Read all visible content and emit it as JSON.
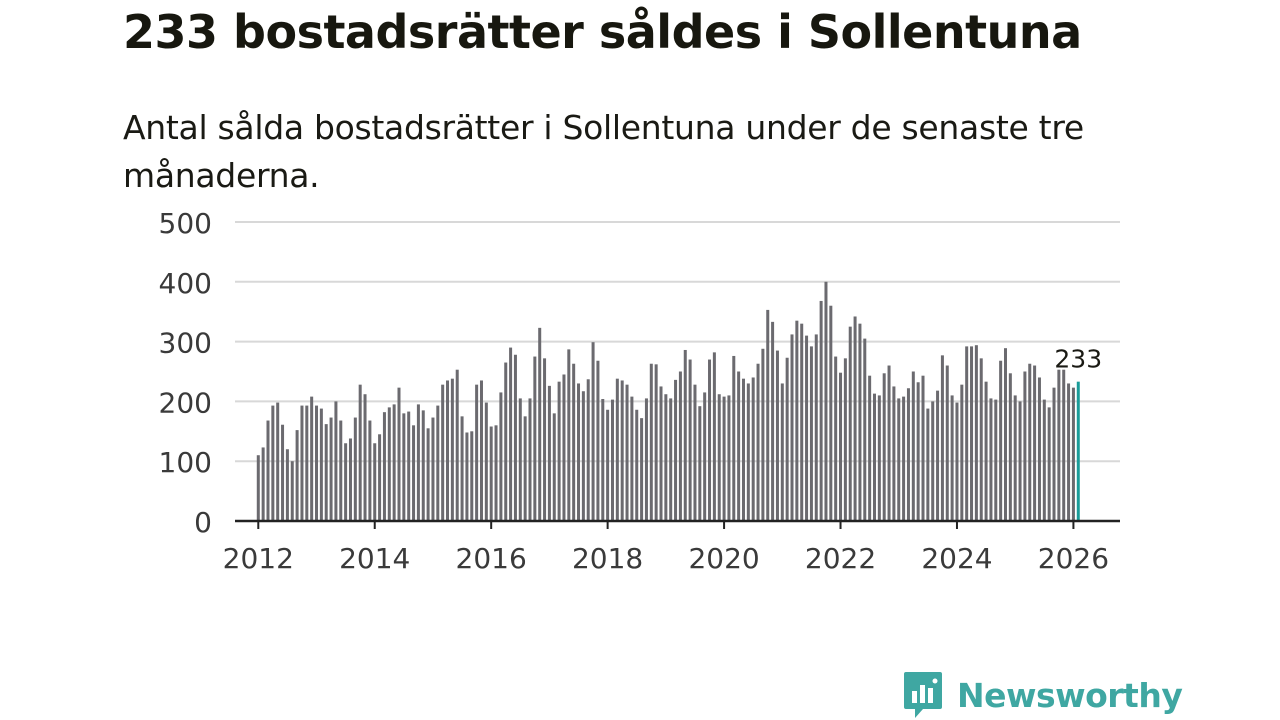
{
  "title": "233 bostadsrätter såldes i Sollentuna",
  "subtitle": "Antal sålda bostadsrätter i Sollentuna under de senaste tre månaderna.",
  "brand": {
    "name": "Newsworthy",
    "color": "#3fa7a2",
    "icon": "newsworthy-chart-bubble-icon"
  },
  "chart_data": {
    "type": "bar",
    "title": "Antal sålda bostadsrätter i Sollentuna under de senaste tre månaderna.",
    "xlabel": "",
    "ylabel": "",
    "ylim": [
      0,
      500
    ],
    "xlim": [
      2011.6,
      2026.8
    ],
    "yticks": [
      0,
      100,
      200,
      300,
      400,
      500
    ],
    "xticks": [
      "2012",
      "2014",
      "2016",
      "2018",
      "2020",
      "2022",
      "2024",
      "2026"
    ],
    "grid": true,
    "start": {
      "year": 2012,
      "month": 1
    },
    "frequency": "monthly",
    "bar_color": "#6b6a6f",
    "highlight_color": "#1a9c99",
    "annotation": "233",
    "values": [
      110,
      123,
      168,
      193,
      198,
      161,
      120,
      100,
      152,
      193,
      193,
      208,
      193,
      188,
      162,
      173,
      200,
      168,
      130,
      138,
      173,
      228,
      212,
      168,
      130,
      145,
      182,
      190,
      195,
      223,
      180,
      183,
      160,
      195,
      185,
      155,
      173,
      193,
      228,
      235,
      238,
      253,
      175,
      148,
      150,
      228,
      235,
      198,
      158,
      160,
      215,
      265,
      290,
      278,
      205,
      175,
      205,
      275,
      323,
      272,
      226,
      180,
      233,
      245,
      287,
      263,
      230,
      217,
      237,
      299,
      268,
      204,
      186,
      203,
      238,
      235,
      228,
      208,
      186,
      172,
      205,
      263,
      262,
      225,
      212,
      205,
      236,
      250,
      286,
      270,
      228,
      192,
      215,
      270,
      282,
      212,
      208,
      210,
      276,
      250,
      238,
      230,
      240,
      263,
      288,
      353,
      333,
      285,
      230,
      273,
      312,
      335,
      330,
      310,
      292,
      312,
      368,
      400,
      360,
      275,
      248,
      272,
      325,
      342,
      330,
      305,
      243,
      213,
      210,
      247,
      260,
      225,
      205,
      208,
      222,
      250,
      232,
      243,
      188,
      200,
      218,
      277,
      260,
      210,
      198,
      228,
      292,
      292,
      294,
      272,
      233,
      205,
      203,
      268,
      289,
      247,
      210,
      200,
      250,
      263,
      260,
      240,
      203,
      190,
      223,
      253,
      253,
      230,
      223,
      233
    ]
  }
}
